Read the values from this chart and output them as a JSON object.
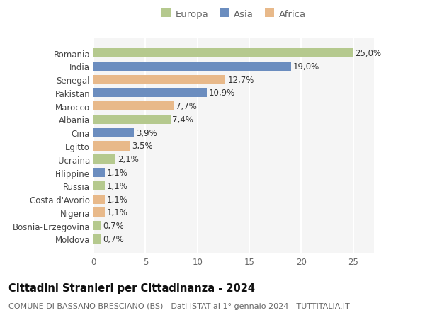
{
  "countries": [
    "Romania",
    "India",
    "Senegal",
    "Pakistan",
    "Marocco",
    "Albania",
    "Cina",
    "Egitto",
    "Ucraina",
    "Filippine",
    "Russia",
    "Costa d'Avorio",
    "Nigeria",
    "Bosnia-Erzegovina",
    "Moldova"
  ],
  "values": [
    25.0,
    19.0,
    12.7,
    10.9,
    7.7,
    7.4,
    3.9,
    3.5,
    2.1,
    1.1,
    1.1,
    1.1,
    1.1,
    0.7,
    0.7
  ],
  "labels": [
    "25,0%",
    "19,0%",
    "12,7%",
    "10,9%",
    "7,7%",
    "7,4%",
    "3,9%",
    "3,5%",
    "2,1%",
    "1,1%",
    "1,1%",
    "1,1%",
    "1,1%",
    "0,7%",
    "0,7%"
  ],
  "continents": [
    "Europa",
    "Asia",
    "Africa",
    "Asia",
    "Africa",
    "Europa",
    "Asia",
    "Africa",
    "Europa",
    "Asia",
    "Europa",
    "Africa",
    "Africa",
    "Europa",
    "Europa"
  ],
  "colors": {
    "Europa": "#b5c98e",
    "Asia": "#6b8dbf",
    "Africa": "#e8b98a"
  },
  "xlim": [
    0,
    27
  ],
  "xticks": [
    0,
    5,
    10,
    15,
    20,
    25
  ],
  "title": "Cittadini Stranieri per Cittadinanza - 2024",
  "subtitle": "COMUNE DI BASSANO BRESCIANO (BS) - Dati ISTAT al 1° gennaio 2024 - TUTTITALIA.IT",
  "bg_color": "#ffffff",
  "plot_bg_color": "#f5f5f5",
  "grid_color": "#ffffff",
  "bar_height": 0.7,
  "label_fontsize": 8.5,
  "tick_fontsize": 8.5,
  "title_fontsize": 10.5,
  "subtitle_fontsize": 8.0,
  "legend_fontsize": 9.5
}
